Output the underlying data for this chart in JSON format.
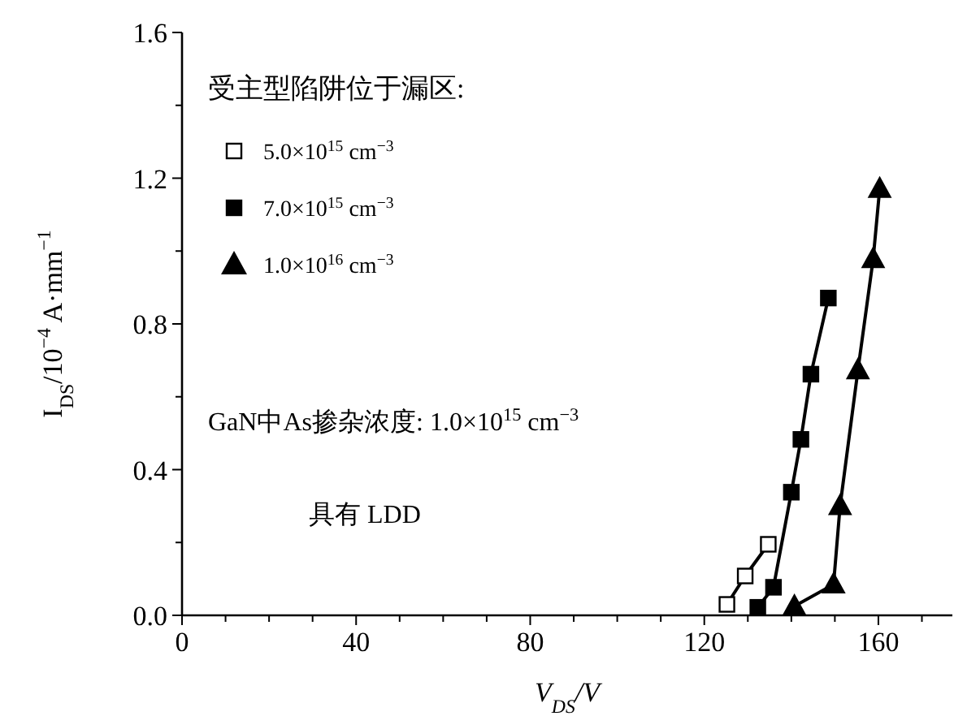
{
  "chart_data": {
    "type": "line",
    "xlabel": "V$_{DS}$/V",
    "ylabel": "I$_{DS}$/10$^{−4}$ A·mm$^{−1}$",
    "legend_title": "受主型陷阱位于漏区:",
    "legend": "top left",
    "grid": false,
    "line_style": "solid",
    "xlim": [
      0,
      177
    ],
    "ylim": [
      0,
      1.6
    ],
    "xticks": [
      0,
      {
        "value": 10,
        "label": null
      },
      {
        "value": 20,
        "label": null
      },
      {
        "value": 30,
        "label": null
      },
      40,
      {
        "value": 50,
        "label": null
      },
      {
        "value": 60,
        "label": null
      },
      {
        "value": 70,
        "label": null
      },
      80,
      {
        "value": 90,
        "label": null
      },
      {
        "value": 100,
        "label": null
      },
      {
        "value": 110,
        "label": null
      },
      120,
      {
        "value": 130,
        "label": null
      },
      {
        "value": 140,
        "label": null
      },
      {
        "value": 150,
        "label": null
      },
      160,
      {
        "value": 170,
        "label": null
      }
    ],
    "yticks": [
      {
        "value": 0,
        "label": "0.0"
      },
      {
        "value": 0.2,
        "label": null
      },
      0.4,
      {
        "value": 0.6,
        "label": null
      },
      0.8,
      {
        "value": 1.0,
        "label": null
      },
      1.2,
      {
        "value": 1.4,
        "label": null
      },
      1.6
    ],
    "annotations": [
      "GaN中As掺杂浓度: 1.0×10$^{15}$ cm$^{−3}$",
      "具有 LDD"
    ],
    "series": [
      {
        "name": "5.0×10$^{15}$ cm$^{−3}$",
        "color": "#000000",
        "colors": [
          "#ffffff",
          "#ffffff",
          "#ffffff"
        ],
        "marker": "square",
        "x": [
          125.2,
          129.4,
          134.7
        ],
        "values": [
          0.03,
          0.108,
          0.195
        ]
      },
      {
        "name": "7.0×10$^{15}$ cm$^{−3}$",
        "color": "#000000",
        "marker": "square",
        "x": [
          132.3,
          135.9,
          140.0,
          142.2,
          144.5,
          148.5
        ],
        "values": [
          0.022,
          0.077,
          0.338,
          0.483,
          0.662,
          0.871
        ]
      },
      {
        "name": "1.0×10$^{16}$ cm$^{−3}$",
        "color": "#000000",
        "marker": "triangle",
        "x": [
          140.7,
          149.7,
          151.2,
          155.3,
          158.8,
          160.3
        ],
        "values": [
          0.025,
          0.085,
          0.3,
          0.673,
          0.978,
          1.171
        ]
      }
    ]
  }
}
